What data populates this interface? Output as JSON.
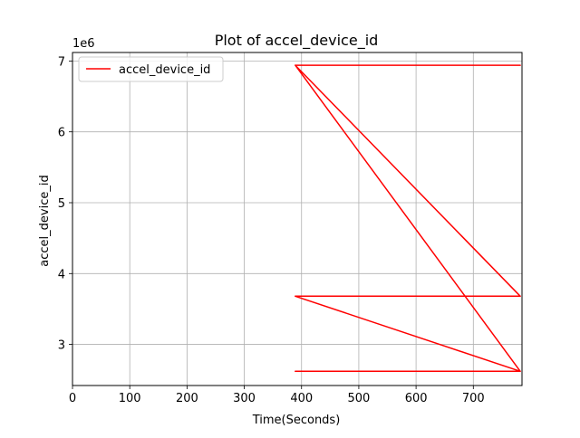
{
  "chart_data": {
    "type": "line",
    "title": "Plot of accel_device_id",
    "xlabel": "Time(Seconds)",
    "ylabel": "accel_device_id",
    "y_offset_label": "1e6",
    "xlim": [
      0,
      785
    ],
    "ylim": [
      2.42,
      7.12
    ],
    "x_ticks": [
      0,
      100,
      200,
      300,
      400,
      500,
      600,
      700
    ],
    "y_ticks": [
      3,
      4,
      5,
      6,
      7
    ],
    "grid": true,
    "legend_position": "upper-left",
    "series": [
      {
        "name": "accel_device_id",
        "color": "#ff0000",
        "x": [
          389,
          782,
          389,
          782,
          389,
          782,
          389,
          782,
          389,
          782,
          389,
          782
        ],
        "y": [
          6.94,
          6.94,
          6.94,
          3.68,
          3.68,
          3.68,
          6.94,
          2.62,
          2.62,
          2.62,
          3.68,
          2.62
        ]
      }
    ]
  }
}
